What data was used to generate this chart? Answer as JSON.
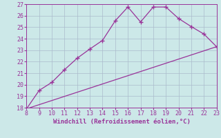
{
  "line1_x": [
    8,
    9,
    10,
    11,
    12,
    13,
    14,
    15,
    16,
    17,
    18,
    19,
    20,
    21,
    22,
    23
  ],
  "line1_y": [
    17.9,
    19.5,
    20.2,
    21.3,
    22.3,
    23.1,
    23.85,
    25.55,
    26.75,
    25.45,
    26.75,
    26.75,
    25.75,
    25.05,
    24.4,
    23.3
  ],
  "line2_x": [
    8,
    23
  ],
  "line2_y": [
    17.9,
    23.3
  ],
  "color": "#993399",
  "bg_color": "#cce8e8",
  "xlabel": "Windchill (Refroidissement éolien,°C)",
  "xlim": [
    8,
    23
  ],
  "ylim": [
    18,
    27
  ],
  "xticks": [
    8,
    9,
    10,
    11,
    12,
    13,
    14,
    15,
    16,
    17,
    18,
    19,
    20,
    21,
    22,
    23
  ],
  "yticks": [
    18,
    19,
    20,
    21,
    22,
    23,
    24,
    25,
    26,
    27
  ],
  "xlabel_color": "#993399",
  "tick_color": "#993399",
  "grid_color": "#aabbcc",
  "marker": "+"
}
